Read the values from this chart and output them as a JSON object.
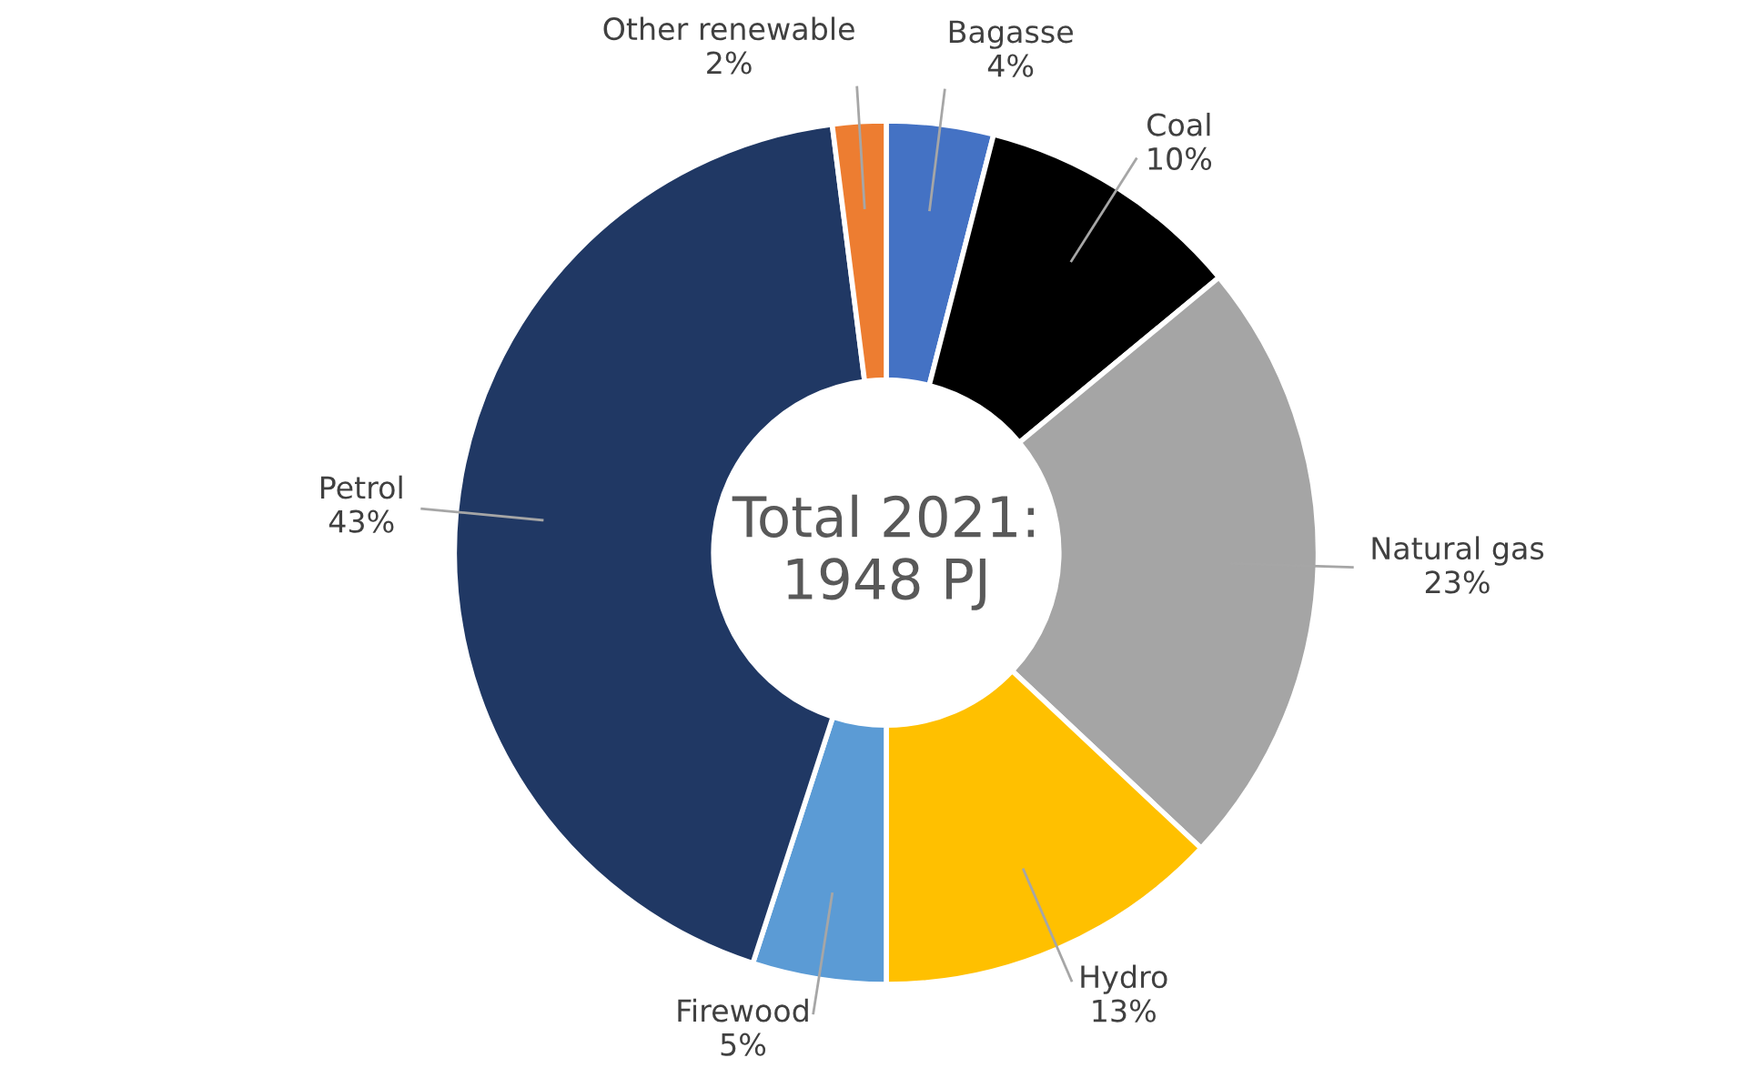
{
  "chart_data": {
    "type": "donut",
    "categories": [
      "Bagasse",
      "Coal",
      "Natural gas",
      "Hydro",
      "Firewood",
      "Petrol",
      "Other renewable"
    ],
    "values": [
      4,
      10,
      23,
      13,
      5,
      43,
      2
    ],
    "value_labels": [
      "4%",
      "10%",
      "23%",
      "13%",
      "5%",
      "43%",
      "2%"
    ],
    "colors": [
      "#4472c4",
      "#000000",
      "#a5a5a5",
      "#ffc000",
      "#5b9bd5",
      "#203864",
      "#ed7d31"
    ],
    "annotations": [
      "Total 2021:\n1948 PJ"
    ]
  }
}
